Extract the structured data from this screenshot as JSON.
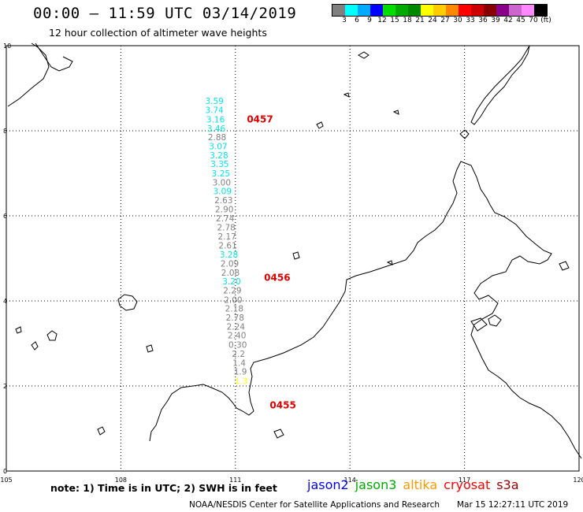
{
  "header": {
    "title": "00:00 – 11:59 UTC 03/14/2019",
    "subtitle": "12 hour collection of altimeter wave heights"
  },
  "colorbar": {
    "colors": [
      "#808080",
      "#00ffff",
      "#00aaff",
      "#0000ff",
      "#00dd00",
      "#00aa00",
      "#008800",
      "#ffff00",
      "#ffcc00",
      "#ff8800",
      "#ff0000",
      "#cc0000",
      "#880000",
      "#880088",
      "#cc66cc",
      "#ff88ff",
      "#000000"
    ],
    "labels": [
      "3",
      "6",
      "9",
      "12",
      "15",
      "18",
      "21",
      "24",
      "27",
      "30",
      "33",
      "36",
      "39",
      "42",
      "45",
      "70",
      "(ft)"
    ]
  },
  "map": {
    "lon_range": [
      105,
      120
    ],
    "lat_range": [
      0,
      10
    ],
    "lon_ticks": [
      "105",
      "108",
      "111",
      "114",
      "117",
      "120"
    ],
    "lat_ticks": [
      "0",
      "2",
      "4",
      "6",
      "8",
      "10"
    ],
    "grid": "dotted"
  },
  "track": {
    "observations": [
      {
        "value": "3.59",
        "lat": 8.7,
        "lon": 110.45,
        "color": "#00e5ee"
      },
      {
        "value": "3.74",
        "lat": 8.49,
        "lon": 110.45,
        "color": "#00e5ee"
      },
      {
        "value": "3.16",
        "lat": 8.27,
        "lon": 110.48,
        "color": "#00e5ee"
      },
      {
        "value": "3.46",
        "lat": 8.06,
        "lon": 110.5,
        "color": "#00e5ee"
      },
      {
        "value": "2.88",
        "lat": 7.85,
        "lon": 110.52,
        "color": "#808080"
      },
      {
        "value": "3.07",
        "lat": 7.64,
        "lon": 110.55,
        "color": "#00e5ee"
      },
      {
        "value": "3.28",
        "lat": 7.43,
        "lon": 110.57,
        "color": "#00e5ee"
      },
      {
        "value": "3.35",
        "lat": 7.22,
        "lon": 110.59,
        "color": "#00e5ee"
      },
      {
        "value": "3.25",
        "lat": 7.0,
        "lon": 110.62,
        "color": "#00e5ee"
      },
      {
        "value": "3.00",
        "lat": 6.79,
        "lon": 110.64,
        "color": "#808080"
      },
      {
        "value": "3.09",
        "lat": 6.58,
        "lon": 110.66,
        "color": "#00e5ee"
      },
      {
        "value": "2.63",
        "lat": 6.37,
        "lon": 110.69,
        "color": "#808080"
      },
      {
        "value": "2.90",
        "lat": 6.16,
        "lon": 110.71,
        "color": "#808080"
      },
      {
        "value": "2.74",
        "lat": 5.94,
        "lon": 110.73,
        "color": "#808080"
      },
      {
        "value": "2.78",
        "lat": 5.73,
        "lon": 110.76,
        "color": "#808080"
      },
      {
        "value": "2.17",
        "lat": 5.52,
        "lon": 110.78,
        "color": "#808080"
      },
      {
        "value": "2.61",
        "lat": 5.31,
        "lon": 110.8,
        "color": "#808080"
      },
      {
        "value": "3.28",
        "lat": 5.09,
        "lon": 110.83,
        "color": "#00e5ee"
      },
      {
        "value": "2.09",
        "lat": 4.88,
        "lon": 110.85,
        "color": "#808080"
      },
      {
        "value": "2.08",
        "lat": 4.67,
        "lon": 110.87,
        "color": "#808080"
      },
      {
        "value": "3.20",
        "lat": 4.46,
        "lon": 110.9,
        "color": "#00e5ee"
      },
      {
        "value": "2.29",
        "lat": 4.25,
        "lon": 110.92,
        "color": "#808080"
      },
      {
        "value": "2.00",
        "lat": 4.03,
        "lon": 110.94,
        "color": "#808080"
      },
      {
        "value": "2.18",
        "lat": 3.82,
        "lon": 110.97,
        "color": "#808080"
      },
      {
        "value": "2.78",
        "lat": 3.61,
        "lon": 110.99,
        "color": "#808080"
      },
      {
        "value": "2.24",
        "lat": 3.4,
        "lon": 111.01,
        "color": "#808080"
      },
      {
        "value": "2.40",
        "lat": 3.19,
        "lon": 111.04,
        "color": "#808080"
      },
      {
        "value": "0.30",
        "lat": 2.97,
        "lon": 111.06,
        "color": "#808080"
      },
      {
        "value": "2.2",
        "lat": 2.76,
        "lon": 111.08,
        "color": "#808080"
      },
      {
        "value": "1.4",
        "lat": 2.55,
        "lon": 111.1,
        "color": "#808080"
      },
      {
        "value": "1.9",
        "lat": 2.34,
        "lon": 111.13,
        "color": "#808080"
      },
      {
        "value": "1.3",
        "lat": 2.12,
        "lon": 111.15,
        "color": "#ffff00"
      }
    ],
    "pass_times": [
      {
        "label": "0457",
        "lat": 8.27,
        "lon": 111.3
      },
      {
        "label": "0456",
        "lat": 4.55,
        "lon": 111.75
      },
      {
        "label": "0455",
        "lat": 1.55,
        "lon": 111.9
      }
    ]
  },
  "footer": {
    "note": "note: 1) Time is in UTC; 2) SWH is in feet",
    "satellites": [
      {
        "name": "jason2",
        "color": "#0000ff"
      },
      {
        "name": "jason3",
        "color": "#00aa00"
      },
      {
        "name": "altika",
        "color": "#ff9900"
      },
      {
        "name": "cryosat",
        "color": "#ff0000"
      },
      {
        "name": "s3a",
        "color": "#990000"
      }
    ],
    "credit": "NOAA/NESDIS Center for Satellite Applications and Research",
    "timestamp": "Mar 15 12:27:11 UTC 2019"
  }
}
